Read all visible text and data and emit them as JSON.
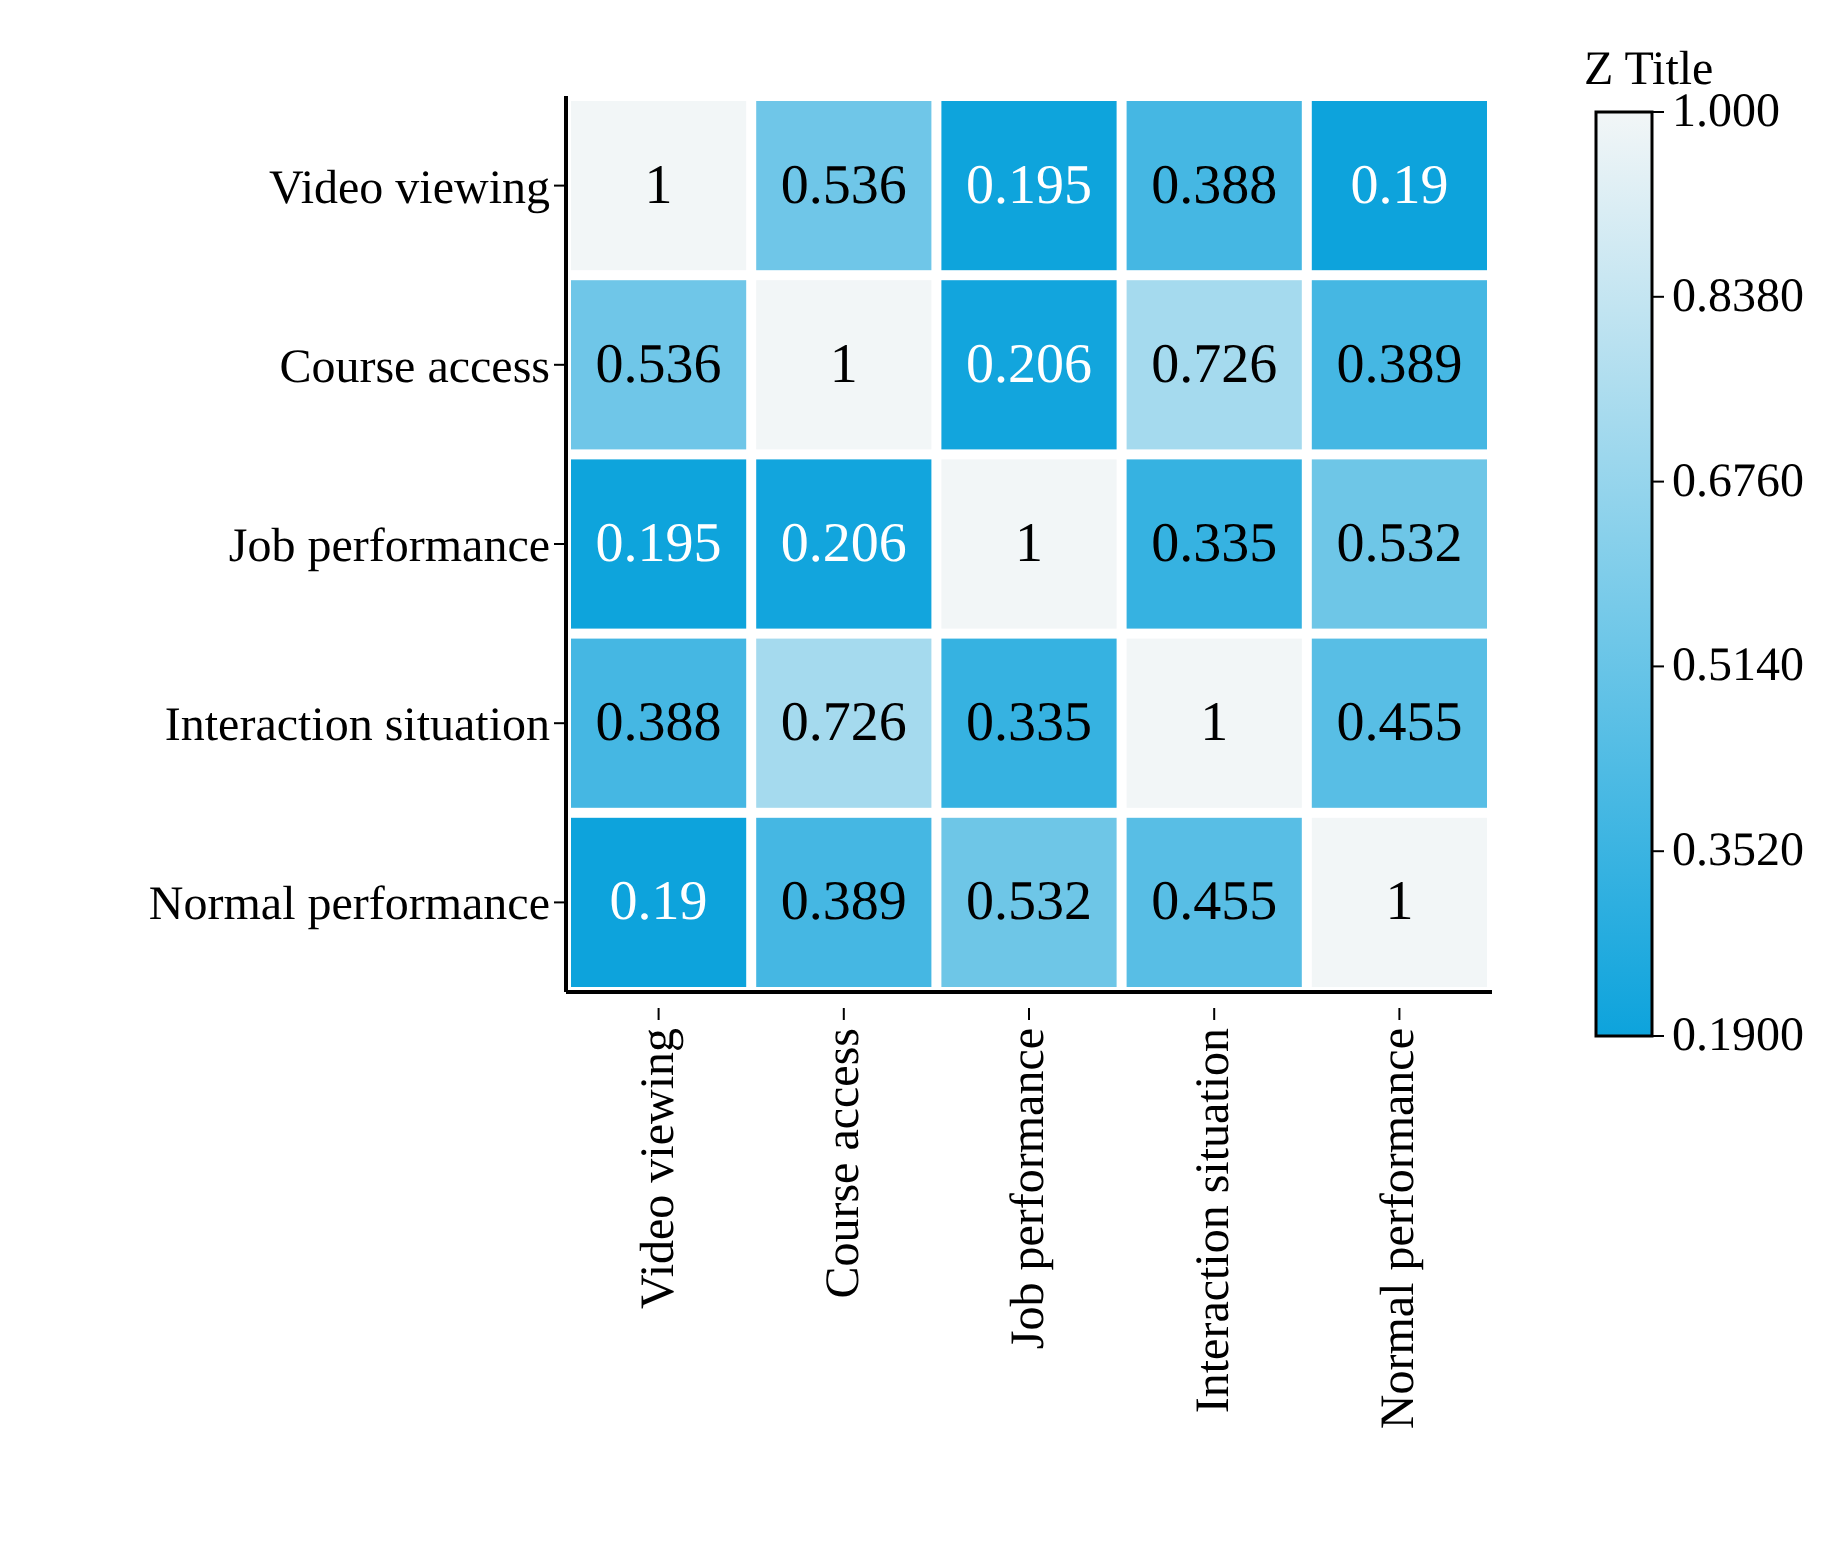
{
  "chart_data": {
    "type": "heatmap",
    "clabel": "Z Title",
    "categories": [
      "Video viewing",
      "Course access",
      "Job performance",
      "Interaction situation",
      "Normal performance"
    ],
    "y_categories": [
      "Video viewing",
      "Course access",
      "Job performance",
      "Interaction situation",
      "Normal performance"
    ],
    "cells": [
      [
        1,
        0.536,
        0.195,
        0.388,
        0.19
      ],
      [
        0.536,
        1,
        0.206,
        0.726,
        0.389
      ],
      [
        0.195,
        0.206,
        1,
        0.335,
        0.532
      ],
      [
        0.388,
        0.726,
        0.335,
        1,
        0.455
      ],
      [
        0.19,
        0.389,
        0.532,
        0.455,
        1
      ]
    ],
    "clim": [
      0.19,
      1
    ],
    "cticks": [
      {
        "value": 1,
        "label": "1.000"
      },
      {
        "value": 0.838,
        "label": "0.8380"
      },
      {
        "value": 0.676,
        "label": "0.6760"
      },
      {
        "value": 0.514,
        "label": "0.5140"
      },
      {
        "value": 0.352,
        "label": "0.3520"
      },
      {
        "value": 0.19,
        "label": "0.1900"
      }
    ],
    "data_labels": true
  }
}
